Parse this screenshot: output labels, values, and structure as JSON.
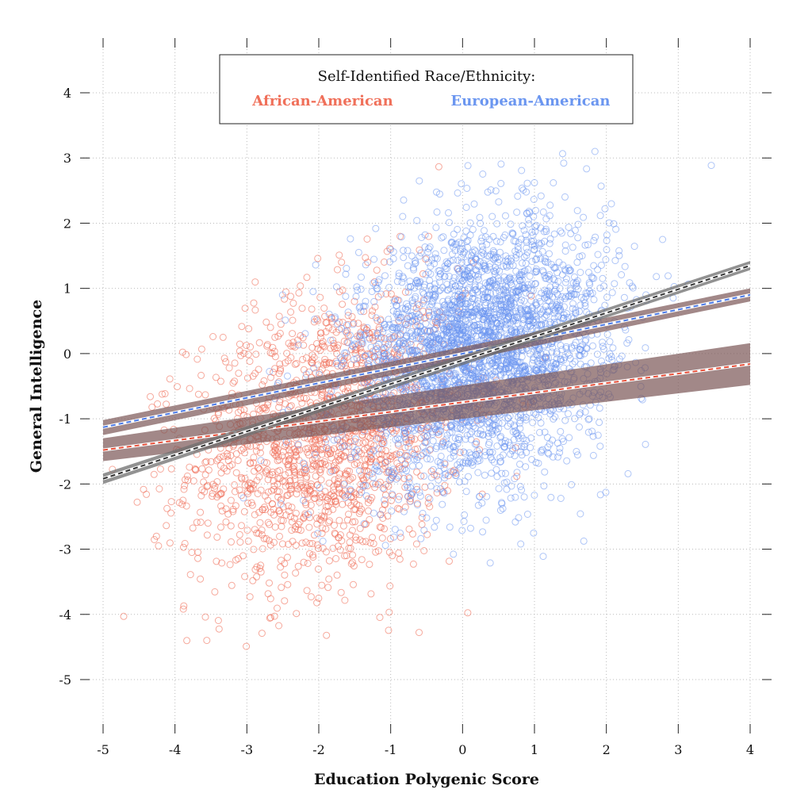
{
  "chart_data": {
    "type": "scatter",
    "title": "",
    "xlabel": "Education Polygenic Score",
    "ylabel": "General Intelligence",
    "xlim": [
      -5,
      4
    ],
    "ylim": [
      -5.8,
      4.8
    ],
    "xticks": [
      -5,
      -4,
      -3,
      -2,
      -1,
      0,
      1,
      2,
      3,
      4
    ],
    "yticks": [
      4,
      3,
      2,
      1,
      0,
      -1,
      -2,
      -3,
      -4,
      -5
    ],
    "grid": true,
    "legend": {
      "title": "Self-Identified Race/Ethnicity:",
      "placement": "top-center",
      "entries": [
        "African-American",
        "European-American"
      ]
    },
    "series": [
      {
        "name": "African-American",
        "color": "#f0705a",
        "marker": "open-circle",
        "center": [
          -1.9,
          -1.3
        ],
        "spread": [
          0.95,
          1.1
        ],
        "n_points": 1600,
        "fit": {
          "x": [
            -5,
            4
          ],
          "y": [
            -1.48,
            -0.16
          ],
          "ci": [
            [
              -5,
              -1.65,
              -1.3
            ],
            [
              4,
              -0.48,
              0.16
            ]
          ],
          "line_color": "#e8503a"
        }
      },
      {
        "name": "European-American",
        "color": "#6b96f0",
        "marker": "open-circle",
        "center": [
          0.2,
          0.0
        ],
        "spread": [
          0.9,
          0.95
        ],
        "n_points": 3200,
        "fit": {
          "x": [
            -5,
            4
          ],
          "y": [
            -1.13,
            0.9
          ],
          "ci": [
            [
              -5,
              -1.25,
              -1.02
            ],
            [
              4,
              0.8,
              1.0
            ]
          ],
          "line_color": "#4a7ae8"
        }
      },
      {
        "name": "",
        "color": "#555555",
        "marker": "none",
        "fit": {
          "x": [
            -5,
            4
          ],
          "y": [
            -1.92,
            1.35
          ],
          "ci": [
            [
              -5,
              -2.0,
              -1.84
            ],
            [
              4,
              1.28,
              1.42
            ]
          ],
          "line_color": "#333333"
        }
      }
    ]
  }
}
